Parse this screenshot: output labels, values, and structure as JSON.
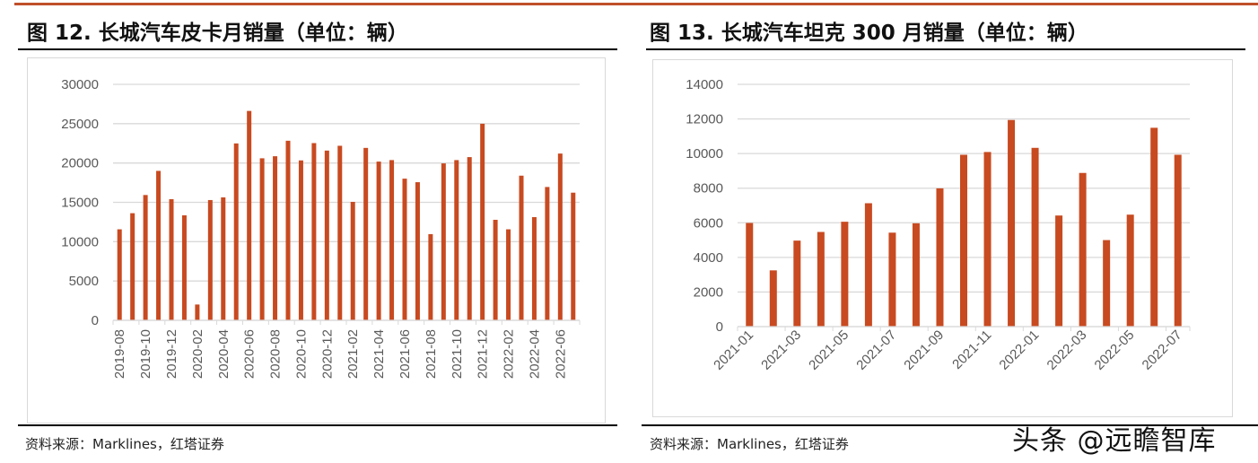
{
  "charts_header": {
    "left_title": "图 12. 长城汽车皮卡月销量（单位：辆）",
    "right_title": "图 13. 长城汽车坦克 300 月销量（单位：辆）",
    "left_source": "资料来源：Marklines，红塔证券",
    "right_source": "资料来源：Marklines，红塔证券",
    "watermark": "头条 @远瞻智库"
  },
  "chart_data": [
    {
      "type": "bar",
      "title": "图 12. 长城汽车皮卡月销量（单位：辆）",
      "color": "#c84a20",
      "ylim": [
        0,
        30000
      ],
      "yticks": [
        "0",
        "5000",
        "10000",
        "15000",
        "20000",
        "25000",
        "30000"
      ],
      "grid": true,
      "categories": [
        "2019-08",
        "2019-09",
        "2019-10",
        "2019-11",
        "2019-12",
        "2020-01",
        "2020-02",
        "2020-03",
        "2020-04",
        "2020-05",
        "2020-06",
        "2020-07",
        "2020-08",
        "2020-09",
        "2020-10",
        "2020-11",
        "2020-12",
        "2021-01",
        "2021-02",
        "2021-03",
        "2021-04",
        "2021-05",
        "2021-06",
        "2021-07",
        "2021-08",
        "2021-09",
        "2021-10",
        "2021-11",
        "2021-12",
        "2022-01",
        "2022-02",
        "2022-03",
        "2022-04",
        "2022-05",
        "2022-06",
        "2022-07"
      ],
      "xtick_labels": [
        "2019-08",
        "2019-10",
        "2019-12",
        "2020-02",
        "2020-04",
        "2020-06",
        "2020-08",
        "2020-10",
        "2020-12",
        "2021-02",
        "2021-04",
        "2021-06",
        "2021-08",
        "2021-10",
        "2021-12",
        "2022-02",
        "2022-04",
        "2022-06"
      ],
      "values": [
        11570,
        13620,
        15930,
        19000,
        15400,
        13350,
        2010,
        15290,
        15630,
        22490,
        26620,
        20600,
        20860,
        22830,
        20330,
        22530,
        21580,
        22190,
        15060,
        21920,
        20180,
        20370,
        18010,
        17560,
        10960,
        19950,
        20370,
        20750,
        24990,
        12780,
        11570,
        18390,
        13120,
        16950,
        21200,
        16230
      ]
    },
    {
      "type": "bar",
      "title": "图 13. 长城汽车坦克 300 月销量（单位：辆）",
      "color": "#c84a20",
      "ylim": [
        0,
        14000
      ],
      "yticks": [
        "0",
        "2000",
        "4000",
        "6000",
        "8000",
        "10000",
        "12000",
        "14000"
      ],
      "grid": true,
      "categories": [
        "2021-01",
        "2021-02",
        "2021-03",
        "2021-04",
        "2021-05",
        "2021-06",
        "2021-07",
        "2021-08",
        "2021-09",
        "2021-10",
        "2021-11",
        "2021-12",
        "2022-01",
        "2022-02",
        "2022-03",
        "2022-04",
        "2022-05",
        "2022-06",
        "2022-07"
      ],
      "xtick_labels": [
        "2021-01",
        "2021-03",
        "2021-05",
        "2021-07",
        "2021-09",
        "2021-11",
        "2022-01",
        "2022-03",
        "2022-05",
        "2022-07"
      ],
      "values": [
        5990,
        3250,
        4970,
        5470,
        6060,
        7130,
        5430,
        5970,
        7990,
        9930,
        10090,
        11940,
        10330,
        6420,
        8880,
        5000,
        6470,
        11490,
        9930
      ]
    }
  ]
}
